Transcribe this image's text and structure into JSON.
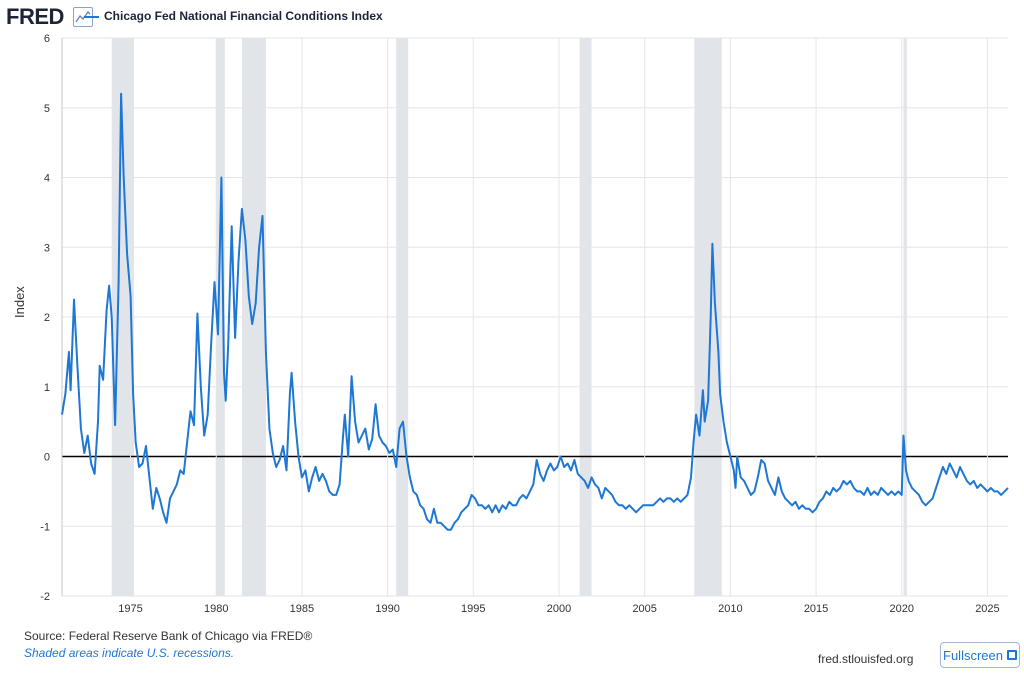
{
  "header": {
    "logo_text": "FRED",
    "logo_icon": "chart-line-icon",
    "series_label": "Chicago Fed National Financial Conditions Index"
  },
  "footer": {
    "source": "Source: Federal Reserve Bank of Chicago via FRED®",
    "note": "Shaded areas indicate U.S. recessions.",
    "site": "fred.stlouisfed.org",
    "fullscreen_label": "Fullscreen",
    "fullscreen_icon": "expand-icon"
  },
  "colors": {
    "line": "#1f77d4",
    "recession": "#e1e5ea",
    "grid": "#e5e5e5",
    "zero": "#000000"
  },
  "chart_data": {
    "type": "line",
    "title": "Chicago Fed National Financial Conditions Index",
    "xlabel": "",
    "ylabel": "Index",
    "xlim": [
      1971.0,
      2026.2
    ],
    "ylim": [
      -2,
      6
    ],
    "x_ticks": [
      1975,
      1980,
      1985,
      1990,
      1995,
      2000,
      2005,
      2010,
      2015,
      2020,
      2025
    ],
    "y_ticks": [
      -2,
      -1,
      0,
      1,
      2,
      3,
      4,
      5,
      6
    ],
    "recessions": [
      [
        1973.9,
        1975.2
      ],
      [
        1980.0,
        1980.5
      ],
      [
        1981.5,
        1982.9
      ],
      [
        1990.5,
        1991.2
      ],
      [
        2001.2,
        2001.9
      ],
      [
        2007.9,
        2009.5
      ],
      [
        2020.1,
        2020.3
      ]
    ],
    "series": [
      {
        "name": "Chicago Fed National Financial Conditions Index",
        "points": [
          [
            1971.0,
            0.6
          ],
          [
            1971.2,
            0.9
          ],
          [
            1971.4,
            1.5
          ],
          [
            1971.5,
            0.95
          ],
          [
            1971.7,
            2.25
          ],
          [
            1971.9,
            1.3
          ],
          [
            1972.1,
            0.4
          ],
          [
            1972.3,
            0.05
          ],
          [
            1972.5,
            0.3
          ],
          [
            1972.7,
            -0.1
          ],
          [
            1972.9,
            -0.25
          ],
          [
            1973.1,
            0.5
          ],
          [
            1973.2,
            1.3
          ],
          [
            1973.4,
            1.1
          ],
          [
            1973.6,
            2.1
          ],
          [
            1973.75,
            2.45
          ],
          [
            1973.9,
            2.0
          ],
          [
            1974.1,
            0.45
          ],
          [
            1974.3,
            2.5
          ],
          [
            1974.45,
            5.2
          ],
          [
            1974.6,
            4.0
          ],
          [
            1974.8,
            2.9
          ],
          [
            1975.0,
            2.3
          ],
          [
            1975.15,
            0.9
          ],
          [
            1975.3,
            0.2
          ],
          [
            1975.5,
            -0.15
          ],
          [
            1975.7,
            -0.1
          ],
          [
            1975.9,
            0.15
          ],
          [
            1976.1,
            -0.3
          ],
          [
            1976.3,
            -0.75
          ],
          [
            1976.5,
            -0.45
          ],
          [
            1976.7,
            -0.6
          ],
          [
            1976.9,
            -0.8
          ],
          [
            1977.1,
            -0.95
          ],
          [
            1977.3,
            -0.6
          ],
          [
            1977.5,
            -0.5
          ],
          [
            1977.7,
            -0.4
          ],
          [
            1977.9,
            -0.2
          ],
          [
            1978.1,
            -0.25
          ],
          [
            1978.3,
            0.2
          ],
          [
            1978.5,
            0.65
          ],
          [
            1978.7,
            0.45
          ],
          [
            1978.9,
            2.05
          ],
          [
            1979.1,
            1.0
          ],
          [
            1979.3,
            0.3
          ],
          [
            1979.5,
            0.6
          ],
          [
            1979.7,
            1.6
          ],
          [
            1979.9,
            2.5
          ],
          [
            1980.1,
            1.75
          ],
          [
            1980.3,
            4.0
          ],
          [
            1980.45,
            1.2
          ],
          [
            1980.55,
            0.8
          ],
          [
            1980.7,
            1.6
          ],
          [
            1980.9,
            3.3
          ],
          [
            1981.1,
            1.7
          ],
          [
            1981.3,
            2.8
          ],
          [
            1981.5,
            3.55
          ],
          [
            1981.7,
            3.1
          ],
          [
            1981.9,
            2.3
          ],
          [
            1982.1,
            1.9
          ],
          [
            1982.3,
            2.2
          ],
          [
            1982.5,
            3.0
          ],
          [
            1982.7,
            3.45
          ],
          [
            1982.9,
            1.5
          ],
          [
            1983.1,
            0.4
          ],
          [
            1983.3,
            0.05
          ],
          [
            1983.5,
            -0.15
          ],
          [
            1983.7,
            -0.05
          ],
          [
            1983.9,
            0.15
          ],
          [
            1984.1,
            -0.2
          ],
          [
            1984.3,
            0.9
          ],
          [
            1984.4,
            1.2
          ],
          [
            1984.6,
            0.5
          ],
          [
            1984.8,
            0.0
          ],
          [
            1985.0,
            -0.3
          ],
          [
            1985.2,
            -0.2
          ],
          [
            1985.4,
            -0.5
          ],
          [
            1985.6,
            -0.3
          ],
          [
            1985.8,
            -0.15
          ],
          [
            1986.0,
            -0.35
          ],
          [
            1986.2,
            -0.25
          ],
          [
            1986.4,
            -0.35
          ],
          [
            1986.6,
            -0.5
          ],
          [
            1986.8,
            -0.55
          ],
          [
            1987.0,
            -0.55
          ],
          [
            1987.2,
            -0.4
          ],
          [
            1987.4,
            0.3
          ],
          [
            1987.5,
            0.6
          ],
          [
            1987.7,
            0.0
          ],
          [
            1987.9,
            1.15
          ],
          [
            1988.1,
            0.5
          ],
          [
            1988.3,
            0.2
          ],
          [
            1988.5,
            0.3
          ],
          [
            1988.7,
            0.4
          ],
          [
            1988.9,
            0.1
          ],
          [
            1989.1,
            0.25
          ],
          [
            1989.3,
            0.75
          ],
          [
            1989.5,
            0.3
          ],
          [
            1989.7,
            0.2
          ],
          [
            1989.9,
            0.15
          ],
          [
            1990.1,
            0.05
          ],
          [
            1990.3,
            0.1
          ],
          [
            1990.5,
            -0.15
          ],
          [
            1990.7,
            0.4
          ],
          [
            1990.9,
            0.5
          ],
          [
            1991.1,
            0.0
          ],
          [
            1991.3,
            -0.3
          ],
          [
            1991.5,
            -0.5
          ],
          [
            1991.7,
            -0.55
          ],
          [
            1991.9,
            -0.7
          ],
          [
            1992.1,
            -0.75
          ],
          [
            1992.3,
            -0.9
          ],
          [
            1992.5,
            -0.95
          ],
          [
            1992.7,
            -0.75
          ],
          [
            1992.9,
            -0.95
          ],
          [
            1993.1,
            -0.95
          ],
          [
            1993.3,
            -1.0
          ],
          [
            1993.5,
            -1.05
          ],
          [
            1993.7,
            -1.05
          ],
          [
            1993.9,
            -0.95
          ],
          [
            1994.1,
            -0.9
          ],
          [
            1994.3,
            -0.8
          ],
          [
            1994.5,
            -0.75
          ],
          [
            1994.7,
            -0.7
          ],
          [
            1994.9,
            -0.55
          ],
          [
            1995.1,
            -0.6
          ],
          [
            1995.3,
            -0.7
          ],
          [
            1995.5,
            -0.7
          ],
          [
            1995.7,
            -0.75
          ],
          [
            1995.9,
            -0.7
          ],
          [
            1996.1,
            -0.8
          ],
          [
            1996.3,
            -0.7
          ],
          [
            1996.5,
            -0.8
          ],
          [
            1996.7,
            -0.7
          ],
          [
            1996.9,
            -0.75
          ],
          [
            1997.1,
            -0.65
          ],
          [
            1997.3,
            -0.7
          ],
          [
            1997.5,
            -0.7
          ],
          [
            1997.7,
            -0.6
          ],
          [
            1997.9,
            -0.55
          ],
          [
            1998.1,
            -0.6
          ],
          [
            1998.3,
            -0.5
          ],
          [
            1998.5,
            -0.4
          ],
          [
            1998.7,
            -0.05
          ],
          [
            1998.9,
            -0.25
          ],
          [
            1999.1,
            -0.35
          ],
          [
            1999.3,
            -0.2
          ],
          [
            1999.5,
            -0.1
          ],
          [
            1999.7,
            -0.2
          ],
          [
            1999.9,
            -0.15
          ],
          [
            2000.1,
            0.0
          ],
          [
            2000.3,
            -0.15
          ],
          [
            2000.5,
            -0.1
          ],
          [
            2000.7,
            -0.2
          ],
          [
            2000.9,
            -0.05
          ],
          [
            2001.1,
            -0.25
          ],
          [
            2001.3,
            -0.3
          ],
          [
            2001.5,
            -0.35
          ],
          [
            2001.7,
            -0.45
          ],
          [
            2001.9,
            -0.3
          ],
          [
            2002.1,
            -0.4
          ],
          [
            2002.3,
            -0.45
          ],
          [
            2002.5,
            -0.6
          ],
          [
            2002.7,
            -0.45
          ],
          [
            2002.9,
            -0.5
          ],
          [
            2003.1,
            -0.55
          ],
          [
            2003.3,
            -0.65
          ],
          [
            2003.5,
            -0.7
          ],
          [
            2003.7,
            -0.7
          ],
          [
            2003.9,
            -0.75
          ],
          [
            2004.1,
            -0.7
          ],
          [
            2004.3,
            -0.75
          ],
          [
            2004.5,
            -0.8
          ],
          [
            2004.7,
            -0.75
          ],
          [
            2004.9,
            -0.7
          ],
          [
            2005.1,
            -0.7
          ],
          [
            2005.3,
            -0.7
          ],
          [
            2005.5,
            -0.7
          ],
          [
            2005.7,
            -0.65
          ],
          [
            2005.9,
            -0.6
          ],
          [
            2006.1,
            -0.65
          ],
          [
            2006.3,
            -0.6
          ],
          [
            2006.5,
            -0.6
          ],
          [
            2006.7,
            -0.65
          ],
          [
            2006.9,
            -0.6
          ],
          [
            2007.1,
            -0.65
          ],
          [
            2007.3,
            -0.6
          ],
          [
            2007.5,
            -0.55
          ],
          [
            2007.7,
            -0.3
          ],
          [
            2007.85,
            0.2
          ],
          [
            2008.0,
            0.6
          ],
          [
            2008.2,
            0.3
          ],
          [
            2008.4,
            0.95
          ],
          [
            2008.5,
            0.5
          ],
          [
            2008.7,
            0.8
          ],
          [
            2008.85,
            2.0
          ],
          [
            2008.95,
            3.05
          ],
          [
            2009.1,
            2.2
          ],
          [
            2009.3,
            1.5
          ],
          [
            2009.4,
            0.9
          ],
          [
            2009.6,
            0.5
          ],
          [
            2009.8,
            0.2
          ],
          [
            2010.0,
            0.0
          ],
          [
            2010.2,
            -0.2
          ],
          [
            2010.3,
            -0.45
          ],
          [
            2010.4,
            0.0
          ],
          [
            2010.6,
            -0.3
          ],
          [
            2010.8,
            -0.35
          ],
          [
            2011.0,
            -0.45
          ],
          [
            2011.2,
            -0.55
          ],
          [
            2011.4,
            -0.5
          ],
          [
            2011.6,
            -0.3
          ],
          [
            2011.8,
            -0.05
          ],
          [
            2012.0,
            -0.1
          ],
          [
            2012.2,
            -0.35
          ],
          [
            2012.4,
            -0.45
          ],
          [
            2012.6,
            -0.55
          ],
          [
            2012.8,
            -0.3
          ],
          [
            2013.0,
            -0.5
          ],
          [
            2013.2,
            -0.6
          ],
          [
            2013.4,
            -0.65
          ],
          [
            2013.6,
            -0.7
          ],
          [
            2013.8,
            -0.65
          ],
          [
            2014.0,
            -0.75
          ],
          [
            2014.2,
            -0.7
          ],
          [
            2014.4,
            -0.75
          ],
          [
            2014.6,
            -0.75
          ],
          [
            2014.8,
            -0.8
          ],
          [
            2015.0,
            -0.75
          ],
          [
            2015.2,
            -0.65
          ],
          [
            2015.4,
            -0.6
          ],
          [
            2015.6,
            -0.5
          ],
          [
            2015.8,
            -0.55
          ],
          [
            2016.0,
            -0.45
          ],
          [
            2016.2,
            -0.5
          ],
          [
            2016.4,
            -0.45
          ],
          [
            2016.6,
            -0.35
          ],
          [
            2016.8,
            -0.4
          ],
          [
            2017.0,
            -0.35
          ],
          [
            2017.2,
            -0.45
          ],
          [
            2017.4,
            -0.5
          ],
          [
            2017.6,
            -0.5
          ],
          [
            2017.8,
            -0.55
          ],
          [
            2018.0,
            -0.45
          ],
          [
            2018.2,
            -0.55
          ],
          [
            2018.4,
            -0.5
          ],
          [
            2018.6,
            -0.55
          ],
          [
            2018.8,
            -0.45
          ],
          [
            2019.0,
            -0.5
          ],
          [
            2019.2,
            -0.55
          ],
          [
            2019.4,
            -0.5
          ],
          [
            2019.6,
            -0.55
          ],
          [
            2019.8,
            -0.5
          ],
          [
            2020.0,
            -0.55
          ],
          [
            2020.1,
            0.3
          ],
          [
            2020.25,
            -0.2
          ],
          [
            2020.4,
            -0.35
          ],
          [
            2020.6,
            -0.45
          ],
          [
            2020.8,
            -0.5
          ],
          [
            2021.0,
            -0.55
          ],
          [
            2021.2,
            -0.65
          ],
          [
            2021.4,
            -0.7
          ],
          [
            2021.6,
            -0.65
          ],
          [
            2021.8,
            -0.6
          ],
          [
            2022.0,
            -0.45
          ],
          [
            2022.2,
            -0.3
          ],
          [
            2022.4,
            -0.15
          ],
          [
            2022.6,
            -0.25
          ],
          [
            2022.8,
            -0.1
          ],
          [
            2023.0,
            -0.2
          ],
          [
            2023.2,
            -0.3
          ],
          [
            2023.4,
            -0.15
          ],
          [
            2023.6,
            -0.25
          ],
          [
            2023.8,
            -0.35
          ],
          [
            2024.0,
            -0.4
          ],
          [
            2024.2,
            -0.35
          ],
          [
            2024.4,
            -0.45
          ],
          [
            2024.6,
            -0.4
          ],
          [
            2024.8,
            -0.45
          ],
          [
            2025.0,
            -0.5
          ],
          [
            2025.2,
            -0.45
          ],
          [
            2025.4,
            -0.5
          ],
          [
            2025.6,
            -0.5
          ],
          [
            2025.8,
            -0.55
          ],
          [
            2026.0,
            -0.5
          ],
          [
            2026.2,
            -0.45
          ]
        ]
      }
    ]
  }
}
